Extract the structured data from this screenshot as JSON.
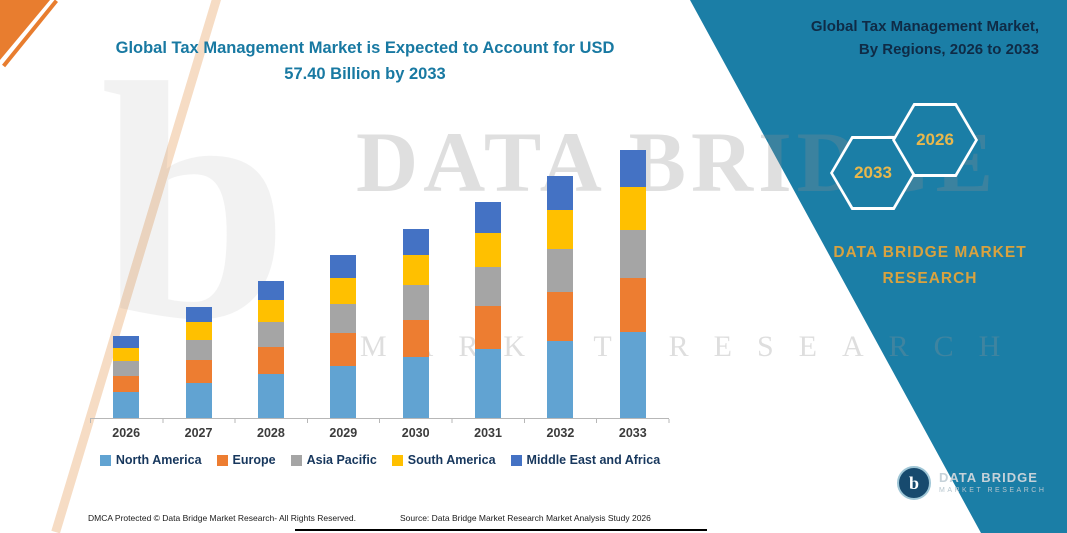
{
  "title": "Global Tax Management Market is Expected to Account for USD 57.40 Billion by 2033",
  "chart_data": {
    "type": "bar",
    "stacked": true,
    "title": "Global Tax Management Market is Expected to Account for USD 57.40 Billion by 2033",
    "xlabel": "",
    "ylabel": "",
    "ylim": [
      0,
      60
    ],
    "grid": false,
    "legend_position": "bottom",
    "categories": [
      "2026",
      "2027",
      "2028",
      "2029",
      "2030",
      "2031",
      "2032",
      "2033"
    ],
    "series": [
      {
        "name": "North America",
        "color": "#61A3D2",
        "values": [
          5.6,
          7.6,
          9.4,
          11.2,
          13.0,
          14.8,
          16.6,
          18.4
        ]
      },
      {
        "name": "Europe",
        "color": "#ED7D31",
        "values": [
          3.5,
          4.8,
          5.9,
          7.0,
          8.1,
          9.2,
          10.4,
          11.5
        ]
      },
      {
        "name": "Asia Pacific",
        "color": "#A5A5A5",
        "values": [
          3.2,
          4.3,
          5.3,
          6.3,
          7.3,
          8.3,
          9.3,
          10.3
        ]
      },
      {
        "name": "South America",
        "color": "#FFC000",
        "values": [
          2.8,
          3.8,
          4.7,
          5.6,
          6.5,
          7.4,
          8.3,
          9.2
        ]
      },
      {
        "name": "Middle East and Africa",
        "color": "#4472C4",
        "values": [
          2.5,
          3.3,
          4.1,
          4.9,
          5.7,
          6.5,
          7.2,
          8.0
        ]
      }
    ],
    "totals_usd_billion": [
      17.6,
      23.8,
      29.4,
      35.0,
      40.6,
      46.2,
      51.8,
      57.4
    ],
    "annotation": "2033 total = USD 57.40 Billion (stated in title); other values estimated from bar heights"
  },
  "right_panel": {
    "title_line1": "Global Tax Management Market,",
    "title_line2": "By Regions, 2026 to 2033",
    "hexagons": [
      {
        "label": "2033"
      },
      {
        "label": "2026"
      }
    ],
    "brand_line1": "DATA BRIDGE MARKET",
    "brand_line2": "RESEARCH",
    "accent_color": "#1B7EA6",
    "gold_color": "#D9A23F"
  },
  "watermark": {
    "big_letter": "b",
    "line1": "DATA BRIDGE",
    "line2": "MARKET RESEARCH"
  },
  "logo": {
    "icon_letter": "b",
    "name": "DATA BRIDGE",
    "subtitle": "MARKET RESEARCH"
  },
  "footer": {
    "left": "DMCA Protected © Data Bridge Market Research-  All Rights Reserved.",
    "source": "Source: Data Bridge Market Research  Market Analysis Study 2026"
  },
  "colors": {
    "teal_panel": "#1B7EA6",
    "title_teal": "#1879A2",
    "orange_accent": "#E87D2F",
    "peach_accent": "#F6DCC4"
  }
}
